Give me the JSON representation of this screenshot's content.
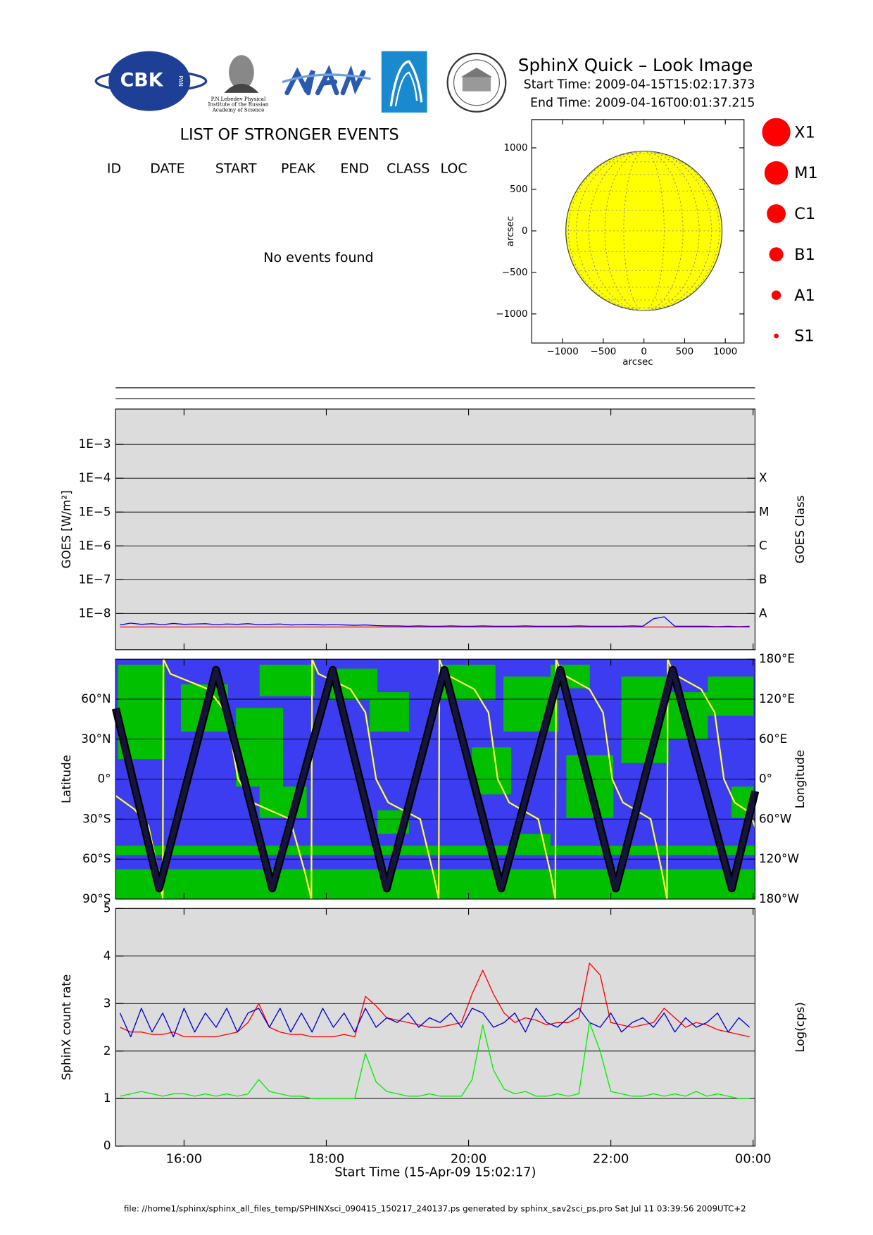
{
  "header": {
    "title": "SphinX Quick – Look Image",
    "start_time": "Start Time: 2009-04-15T15:02:17.373",
    "end_time": "End Time: 2009-04-16T00:01:37.215",
    "logo_cbk": "CBK",
    "logo_pan": "PAN",
    "lebedev_caption": [
      "P.N.Lebedev Physical",
      "Institute of the Russian",
      "Academy of Science"
    ]
  },
  "events": {
    "title": "LIST OF STRONGER EVENTS",
    "columns": [
      "ID",
      "DATE",
      "START",
      "PEAK",
      "END",
      "CLASS",
      "LOC"
    ],
    "message": "No events found"
  },
  "legend": {
    "classes": [
      "X1",
      "M1",
      "C1",
      "B1",
      "A1",
      "S1"
    ],
    "color": "#ff0000"
  },
  "footer": "file: //home1/sphinx/sphinx_all_files_temp/SPHINXsci_090415_150217_240137.ps generated by sphinx_sav2sci_ps.pro Sat Jul 11 03:39:56 2009UTC+2",
  "chart_data": [
    {
      "type": "disk",
      "xlabel": "arcsec",
      "ylabel": "arcsec",
      "xlim": [
        -1380,
        1230
      ],
      "ylim": [
        -1350,
        1340
      ],
      "xticks": [
        {
          "value": -1000,
          "label": "−1000"
        },
        {
          "value": -500,
          "label": "−500"
        },
        0,
        500,
        1000
      ],
      "yticks": [
        {
          "value": -1000,
          "label": "−1000"
        },
        {
          "value": -500,
          "label": "−500"
        },
        0,
        500,
        1000
      ],
      "radius": 960,
      "color": "#ffff00"
    },
    {
      "type": "line",
      "ylabel": "GOES [W/m²]",
      "y2label": "GOES Class",
      "ylog": true,
      "grid": true,
      "background": "#dcdcdc",
      "xlim": [
        15.038,
        24.027
      ],
      "xticks": [
        16,
        18,
        20,
        22,
        24
      ],
      "ylim": [
        8.5e-10,
        0.0111
      ],
      "yticks": [
        {
          "value": 1e-08,
          "label": "1E−8"
        },
        {
          "value": 1e-07,
          "label": "1E−7"
        },
        {
          "value": 1e-06,
          "label": "1E−6"
        },
        {
          "value": 1e-05,
          "label": "1E−5"
        },
        {
          "value": 0.0001,
          "label": "1E−4"
        },
        {
          "value": 0.001,
          "label": "1E−3"
        }
      ],
      "y2lim": [
        8.5e-10,
        0.0111
      ],
      "y2ticks": [
        {
          "value": 1e-08,
          "label": "A"
        },
        {
          "value": 1e-07,
          "label": "B"
        },
        {
          "value": 1e-06,
          "label": "C"
        },
        {
          "value": 1e-05,
          "label": "M"
        },
        {
          "value": 0.0001,
          "label": "X"
        }
      ],
      "x": [
        15.1,
        15.25,
        15.4,
        15.55,
        15.7,
        15.85,
        16.0,
        16.15,
        16.3,
        16.45,
        16.6,
        16.75,
        16.9,
        17.05,
        17.2,
        17.35,
        17.5,
        17.65,
        17.8,
        17.95,
        18.1,
        18.25,
        18.4,
        18.55,
        18.7,
        18.85,
        19.0,
        19.15,
        19.3,
        19.45,
        19.6,
        19.75,
        19.9,
        20.05,
        20.2,
        20.35,
        20.5,
        20.65,
        20.8,
        20.95,
        21.1,
        21.25,
        21.4,
        21.55,
        21.7,
        21.85,
        22.0,
        22.15,
        22.3,
        22.45,
        22.6,
        22.75,
        22.9,
        23.05,
        23.2,
        23.35,
        23.5,
        23.65,
        23.8,
        23.95
      ],
      "series": [
        {
          "color": "#0000ff",
          "values": [
            4.6e-09,
            5.2e-09,
            4.8e-09,
            5e-09,
            4.7e-09,
            5.1e-09,
            4.8e-09,
            4.9e-09,
            5e-09,
            4.7e-09,
            4.9e-09,
            4.8e-09,
            5e-09,
            4.7e-09,
            4.8e-09,
            4.9e-09,
            4.6e-09,
            4.7e-09,
            4.8e-09,
            4.6e-09,
            4.7e-09,
            4.6e-09,
            4.5e-09,
            4.6e-09,
            4.4e-09,
            4.3e-09,
            4.3e-09,
            4.2e-09,
            4.3e-09,
            4.2e-09,
            4.2e-09,
            4.3e-09,
            4.2e-09,
            4.2e-09,
            4.3e-09,
            4.2e-09,
            4.2e-09,
            4.2e-09,
            4.3e-09,
            4.2e-09,
            4.2e-09,
            4.2e-09,
            4.2e-09,
            4.3e-09,
            4.2e-09,
            4.2e-09,
            4.2e-09,
            4.2e-09,
            4.3e-09,
            4.2e-09,
            7e-09,
            8e-09,
            4.2e-09,
            4.2e-09,
            4.2e-09,
            4.2e-09,
            4.1e-09,
            4.2e-09,
            4.1e-09,
            4.2e-09
          ]
        },
        {
          "color": "#ff0000",
          "values": [
            4e-09,
            4e-09,
            4e-09,
            4e-09,
            4e-09,
            4e-09,
            4e-09,
            4e-09,
            4e-09,
            4e-09,
            4e-09,
            4e-09,
            4e-09,
            4e-09,
            4e-09,
            4e-09,
            4e-09,
            4e-09,
            4e-09,
            4e-09,
            4e-09,
            4e-09,
            4e-09,
            4e-09,
            4e-09,
            4e-09,
            4e-09,
            4e-09,
            4e-09,
            4e-09,
            4e-09,
            4e-09,
            4e-09,
            4e-09,
            4e-09,
            4e-09,
            4e-09,
            4e-09,
            4e-09,
            4e-09,
            4e-09,
            4e-09,
            4e-09,
            4e-09,
            4e-09,
            4e-09,
            4e-09,
            4e-09,
            4e-09,
            4e-09,
            4e-09,
            4e-09,
            4e-09,
            4e-09,
            4e-09,
            4e-09,
            4e-09,
            4e-09,
            4e-09,
            4e-09
          ]
        }
      ]
    },
    {
      "type": "line",
      "ylabel": "Latitude",
      "y2label": "Longitude",
      "grid": true,
      "background": "#3c3cf0",
      "land_color": "#00c000",
      "xlim": [
        15.038,
        24.027
      ],
      "xticks": [
        16,
        18,
        20,
        22,
        24
      ],
      "ylim": [
        -90,
        90
      ],
      "yticks": [
        {
          "value": -90,
          "label": "90°S"
        },
        {
          "value": -60,
          "label": "60°S"
        },
        {
          "value": -30,
          "label": "30°S"
        },
        {
          "value": 0,
          "label": "0°"
        },
        {
          "value": 30,
          "label": "30°N"
        },
        {
          "value": 60,
          "label": "60°N"
        }
      ],
      "y2lim": [
        -180,
        180
      ],
      "y2ticks": [
        {
          "value": -180,
          "label": "180°W"
        },
        {
          "value": -120,
          "label": "120°W"
        },
        {
          "value": -60,
          "label": "60°W"
        },
        {
          "value": 0,
          "label": "0°"
        },
        {
          "value": 60,
          "label": "60°E"
        },
        {
          "value": 120,
          "label": "120°E"
        },
        {
          "value": 180,
          "label": "180°E"
        }
      ],
      "series": [
        {
          "color": "#ffff40",
          "axis": "y2",
          "x": [
            15.04,
            15.3,
            15.5,
            15.62,
            15.7,
            15.71,
            15.81,
            16.34,
            16.59,
            16.76,
            16.96,
            17.49,
            17.7,
            17.79,
            17.8,
            17.89,
            18.34,
            18.55,
            18.7,
            18.87,
            19.32,
            19.5,
            19.58,
            19.59,
            19.67,
            20.08,
            20.28,
            20.41,
            20.57,
            20.98,
            21.15,
            21.22,
            21.23,
            21.31,
            21.7,
            21.89,
            22.02,
            22.17,
            22.56,
            22.72,
            22.79,
            22.8,
            22.88,
            23.27,
            23.46,
            23.59,
            23.74,
            23.95,
            24.03
          ],
          "values": [
            -25,
            -45,
            -70,
            -130,
            -178,
            180,
            158,
            135,
            100,
            0,
            -35,
            -60,
            -140,
            -180,
            180,
            158,
            135,
            100,
            0,
            -35,
            -60,
            -140,
            -180,
            180,
            158,
            135,
            100,
            0,
            -35,
            -60,
            -140,
            -180,
            180,
            158,
            135,
            100,
            0,
            -35,
            -60,
            -140,
            -180,
            180,
            158,
            135,
            100,
            0,
            -35,
            -50,
            -72
          ]
        },
        {
          "color": "#14143c",
          "x": [
            15.04,
            15.65,
            16.45,
            17.24,
            18.09,
            18.85,
            19.66,
            20.46,
            21.29,
            22.07,
            22.87,
            23.7,
            24.03
          ],
          "values": [
            53,
            -82,
            82,
            -82,
            82,
            -82,
            82,
            -82,
            82,
            -82,
            82,
            -82,
            -9
          ]
        }
      ]
    },
    {
      "type": "line",
      "ylabel": "SphinX count rate",
      "y2label": "Log(cps)",
      "xlabel": "Start Time (15-Apr-09 15:02:17)",
      "grid": true,
      "background": "#dcdcdc",
      "xlim": [
        15.038,
        24.027
      ],
      "xticks": [
        {
          "value": 16,
          "label": "16:00"
        },
        {
          "value": 18,
          "label": "18:00"
        },
        {
          "value": 20,
          "label": "20:00"
        },
        {
          "value": 22,
          "label": "22:00"
        },
        {
          "value": 24,
          "label": "00:00"
        }
      ],
      "ylim": [
        0,
        5
      ],
      "yticks": [
        0,
        1,
        2,
        3,
        4,
        5
      ],
      "x": [
        15.1,
        15.25,
        15.4,
        15.55,
        15.7,
        15.85,
        16.0,
        16.15,
        16.3,
        16.45,
        16.6,
        16.75,
        16.9,
        17.05,
        17.2,
        17.35,
        17.5,
        17.65,
        17.8,
        17.95,
        18.1,
        18.25,
        18.4,
        18.55,
        18.7,
        18.85,
        19.0,
        19.15,
        19.3,
        19.45,
        19.6,
        19.75,
        19.9,
        20.05,
        20.2,
        20.35,
        20.5,
        20.65,
        20.8,
        20.95,
        21.1,
        21.25,
        21.4,
        21.55,
        21.7,
        21.85,
        22.0,
        22.15,
        22.3,
        22.45,
        22.6,
        22.75,
        22.9,
        23.05,
        23.2,
        23.35,
        23.5,
        23.65,
        23.8,
        23.95
      ],
      "series": [
        {
          "color": "#ff0000",
          "values": [
            2.5,
            2.4,
            2.4,
            2.35,
            2.35,
            2.4,
            2.3,
            2.3,
            2.3,
            2.3,
            2.35,
            2.4,
            2.6,
            3.0,
            2.5,
            2.4,
            2.35,
            2.35,
            2.3,
            2.3,
            2.3,
            2.35,
            2.3,
            3.15,
            2.95,
            2.7,
            2.65,
            2.6,
            2.55,
            2.5,
            2.5,
            2.55,
            2.6,
            3.2,
            3.7,
            3.2,
            2.8,
            2.6,
            2.7,
            2.65,
            2.55,
            2.6,
            2.6,
            2.7,
            3.85,
            3.6,
            2.6,
            2.55,
            2.5,
            2.55,
            2.6,
            2.9,
            2.7,
            2.5,
            2.6,
            2.55,
            2.45,
            2.4,
            2.35,
            2.3
          ]
        },
        {
          "color": "#0000cc",
          "values": [
            2.8,
            2.3,
            2.9,
            2.4,
            2.8,
            2.3,
            2.9,
            2.4,
            2.8,
            2.5,
            2.9,
            2.4,
            2.8,
            2.9,
            2.5,
            2.9,
            2.4,
            2.8,
            2.4,
            2.9,
            2.5,
            2.8,
            2.4,
            2.9,
            2.5,
            2.7,
            2.6,
            2.8,
            2.5,
            2.7,
            2.6,
            2.8,
            2.5,
            2.9,
            2.8,
            2.5,
            2.6,
            2.8,
            2.4,
            2.9,
            2.6,
            2.5,
            2.7,
            2.9,
            2.6,
            2.5,
            2.8,
            2.4,
            2.6,
            2.7,
            2.5,
            2.8,
            2.4,
            2.7,
            2.5,
            2.6,
            2.8,
            2.4,
            2.7,
            2.5
          ]
        },
        {
          "color": "#00ee00",
          "values": [
            1.05,
            1.1,
            1.15,
            1.1,
            1.05,
            1.1,
            1.1,
            1.05,
            1.1,
            1.05,
            1.1,
            1.05,
            1.1,
            1.4,
            1.15,
            1.1,
            1.05,
            1.05,
            1.0,
            1.0,
            1.0,
            1.0,
            1.0,
            1.95,
            1.35,
            1.15,
            1.1,
            1.05,
            1.05,
            1.1,
            1.05,
            1.05,
            1.05,
            1.4,
            2.55,
            1.6,
            1.2,
            1.1,
            1.15,
            1.05,
            1.05,
            1.1,
            1.05,
            1.1,
            2.6,
            2.0,
            1.15,
            1.1,
            1.05,
            1.05,
            1.1,
            1.05,
            1.1,
            1.05,
            1.15,
            1.05,
            1.1,
            1.05,
            1.0,
            1.0
          ]
        }
      ]
    }
  ]
}
